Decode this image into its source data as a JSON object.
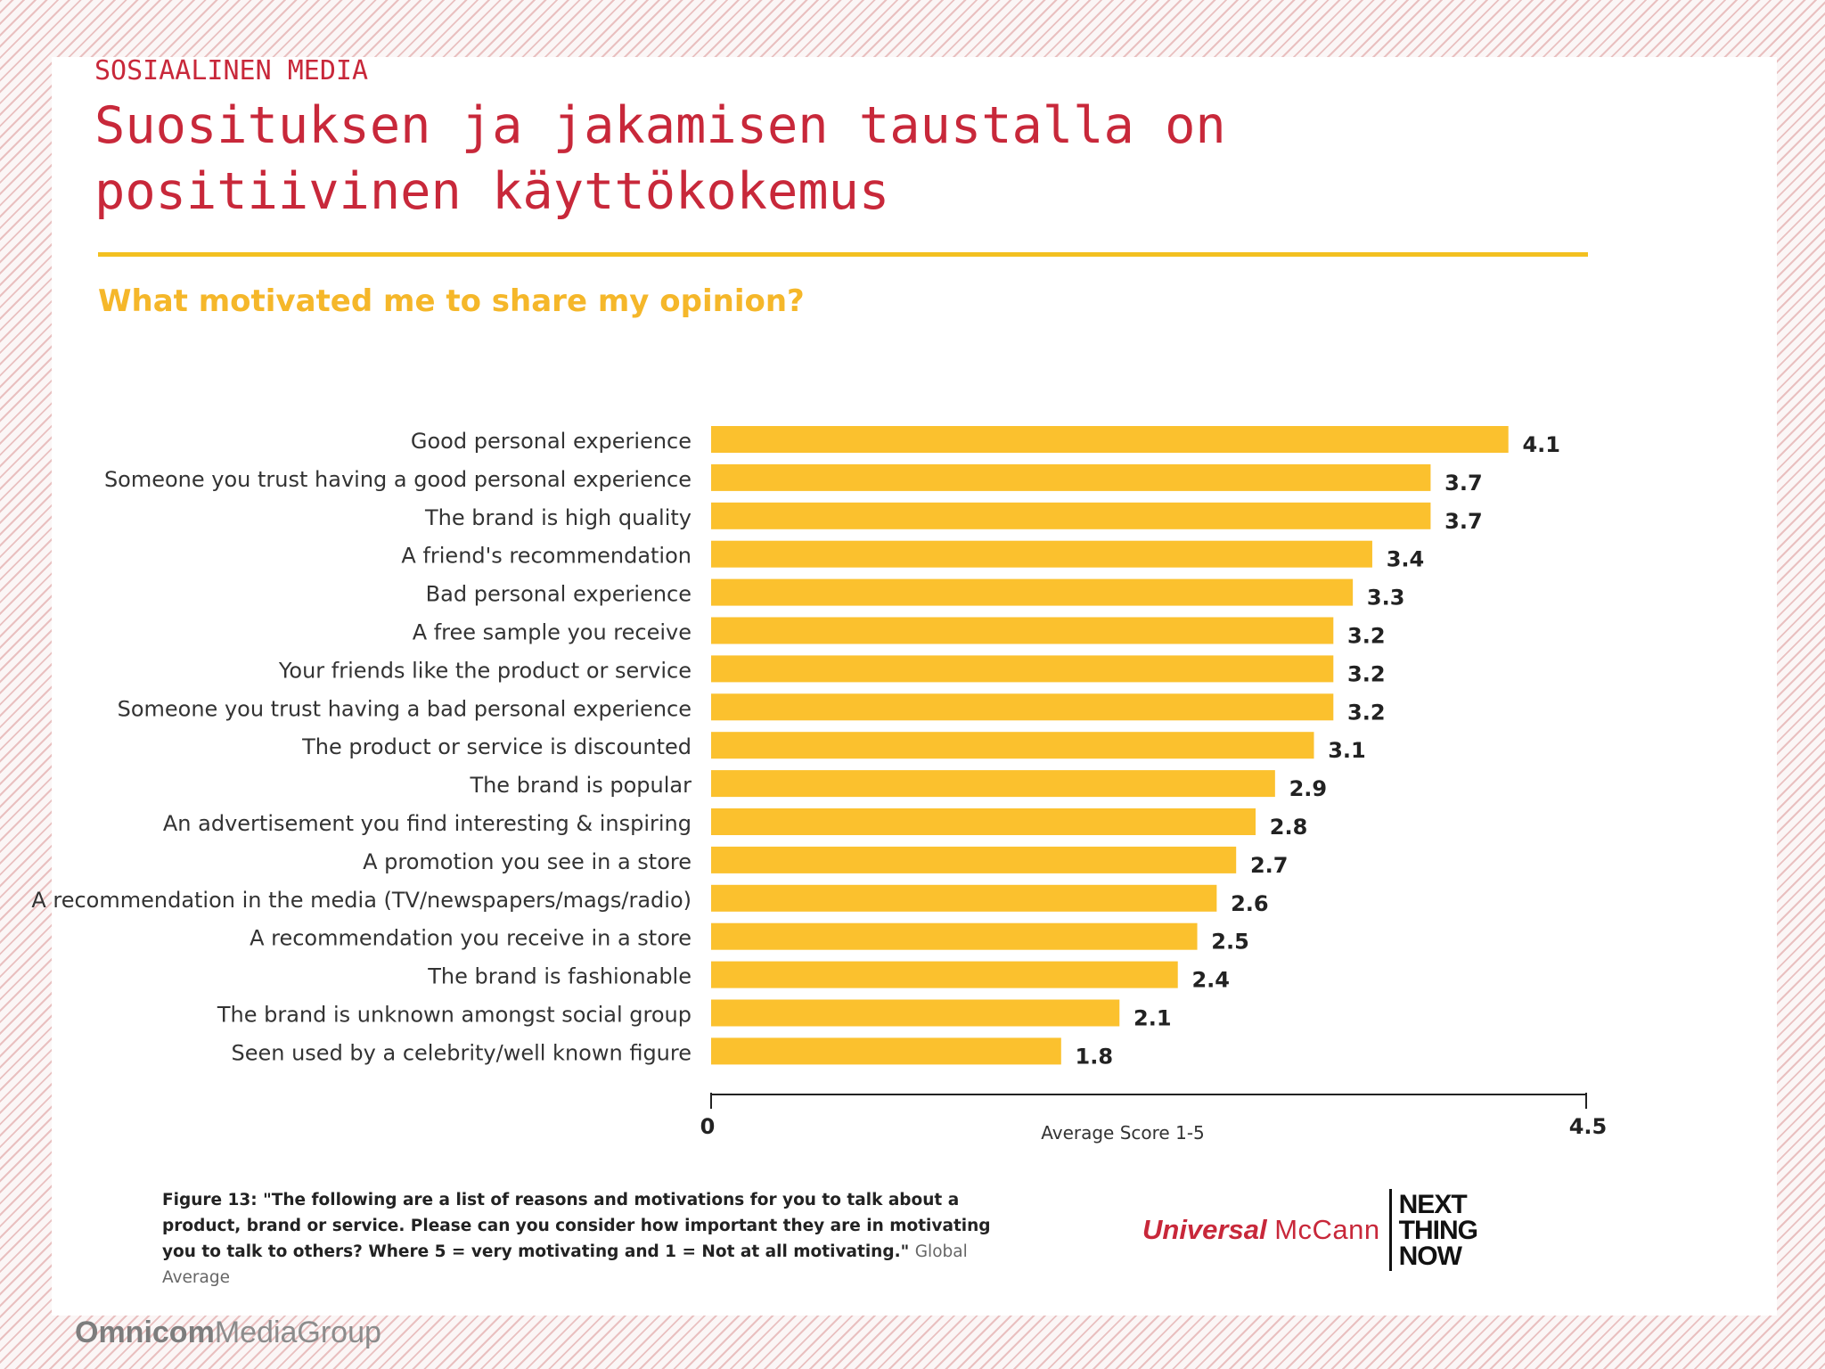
{
  "slide": {
    "section": "SOSIAALINEN MEDIA",
    "title": "Suosituksen ja jakamisen taustalla on positiivinen käyttökokemus"
  },
  "colors": {
    "bar": "#fbc12e",
    "title_red": "#c8283a",
    "rule_yellow": "#f3c020",
    "chart_title_yellow": "#f5b72a"
  },
  "chart_data": {
    "type": "bar",
    "orientation": "horizontal",
    "title": "What motivated me to share my opinion?",
    "xlabel": "Average Score 1-5",
    "ylabel": "",
    "xlim": [
      0,
      4.5
    ],
    "ticks": [
      "0",
      "4.5"
    ],
    "grid": false,
    "categories": [
      "Good personal experience",
      "Someone you trust having a good personal experience",
      "The  brand is high quality",
      "A friend's recommendation",
      "Bad personal experience",
      "A free sample you receive",
      "Your friends like the product or service",
      "Someone you trust having a bad personal experience",
      "The product or service is discounted",
      "The brand is popular",
      "An advertisement you find interesting & inspiring",
      "A promotion you see in a store",
      "A recommendation in the media (TV/newspapers/mags/radio)",
      "A recommendation you receive in a store",
      "The brand is fashionable",
      "The brand is unknown amongst social group",
      "Seen used by a celebrity/well known figure"
    ],
    "values": [
      4.1,
      3.7,
      3.7,
      3.4,
      3.3,
      3.2,
      3.2,
      3.2,
      3.1,
      2.9,
      2.8,
      2.7,
      2.6,
      2.5,
      2.4,
      2.1,
      1.8
    ],
    "value_labels": [
      "4.1",
      "3.7",
      "3.7",
      "3.4",
      "3.3",
      "3.2",
      "3.2",
      "3.2",
      "3.1",
      "2.9",
      "2.8",
      "2.7",
      "2.6",
      "2.5",
      "2.4",
      "2.1",
      "1.8"
    ]
  },
  "caption": {
    "text": "Figure 13: \"The following are a list of reasons and motivations for you to talk about a product, brand or service. Please can you consider how important they are in motivating you to talk to others? Where 5 = very motivating and 1 = Not at all motivating.\"",
    "source": "Global Average"
  },
  "brand": {
    "universal": "Universal",
    "mccann": "McCann",
    "ntn_line1": "NEXT",
    "ntn_line2": "THING",
    "ntn_line3": "NOW"
  },
  "footer": {
    "omnicom": "Omnicom",
    "media_group": "MediaGroup"
  }
}
